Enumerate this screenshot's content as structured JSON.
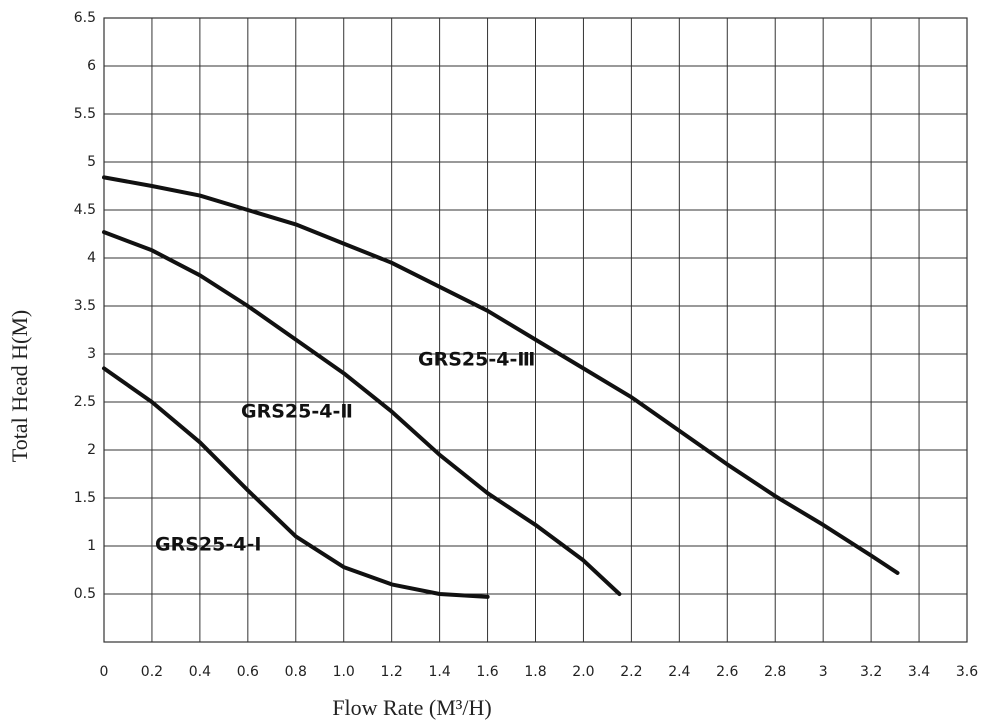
{
  "chart_data": {
    "type": "line",
    "x_label": "Flow Rate (M³/H)",
    "y_label": "Total Head H(M)",
    "xlim": [
      0,
      3.6
    ],
    "ylim": [
      0,
      6.5
    ],
    "xticks": [
      0,
      0.2,
      0.4,
      0.6,
      0.8,
      {
        "value": 1,
        "label": "1.0"
      },
      1.2,
      1.4,
      1.6,
      1.8,
      {
        "value": 2,
        "label": "2.0"
      },
      2.2,
      2.4,
      2.6,
      2.8,
      3,
      3.2,
      3.4,
      3.6
    ],
    "yticks": [
      0.5,
      1,
      1.5,
      2,
      2.5,
      3,
      3.5,
      4,
      4.5,
      5,
      5.5,
      6,
      6.5
    ],
    "grid": true,
    "series": [
      {
        "name": "GRS25-4-Ⅰ",
        "color": "#111111",
        "x": [
          0,
          0.2,
          0.4,
          0.6,
          0.8,
          1.0,
          1.2,
          1.4,
          1.6
        ],
        "values": [
          2.85,
          2.5,
          2.08,
          1.58,
          1.1,
          0.78,
          0.6,
          0.5,
          0.47
        ]
      },
      {
        "name": "GRS25-4-Ⅱ",
        "color": "#111111",
        "x": [
          0,
          0.2,
          0.4,
          0.6,
          0.8,
          1.0,
          1.2,
          1.4,
          1.6,
          1.8,
          2.0,
          2.15
        ],
        "values": [
          4.27,
          4.08,
          3.82,
          3.5,
          3.15,
          2.8,
          2.4,
          1.95,
          1.55,
          1.22,
          0.85,
          0.5
        ]
      },
      {
        "name": "GRS25-4-Ⅲ",
        "color": "#111111",
        "x": [
          0,
          0.2,
          0.4,
          0.6,
          0.8,
          1.0,
          1.2,
          1.4,
          1.6,
          1.8,
          2.0,
          2.2,
          2.4,
          2.6,
          2.8,
          3.0,
          3.2,
          3.31
        ],
        "values": [
          4.84,
          4.75,
          4.65,
          4.5,
          4.35,
          4.15,
          3.95,
          3.7,
          3.45,
          3.15,
          2.85,
          2.55,
          2.2,
          1.85,
          1.52,
          1.22,
          0.9,
          0.72
        ]
      }
    ]
  }
}
